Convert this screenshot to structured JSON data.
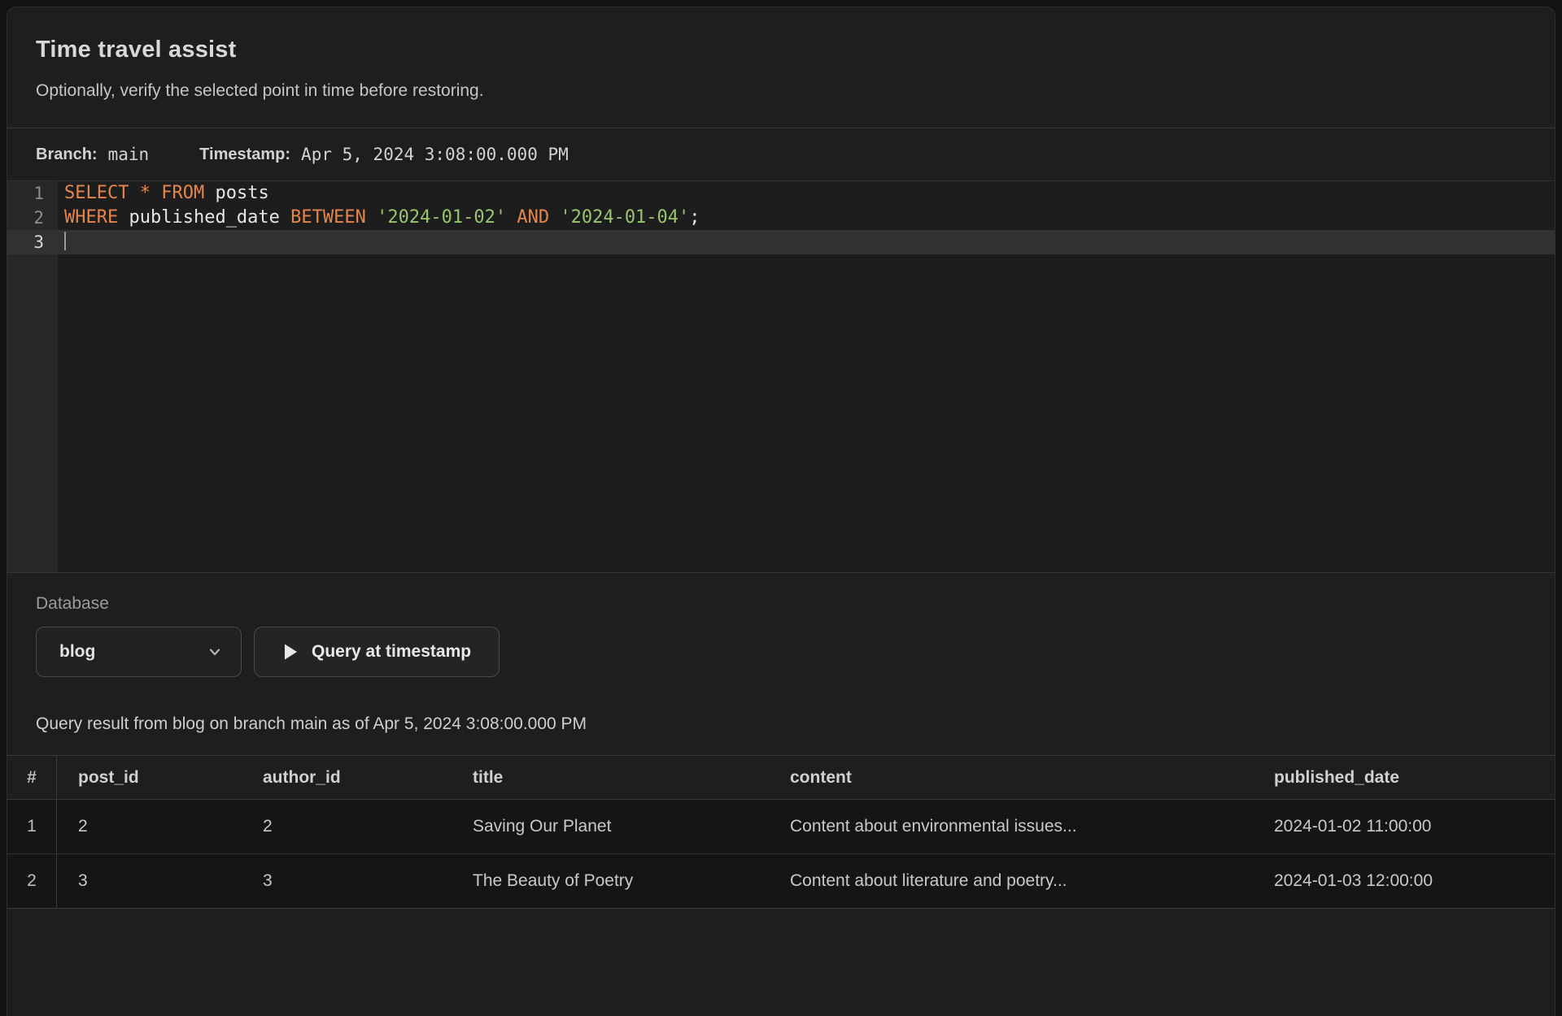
{
  "header": {
    "title": "Time travel assist",
    "subtitle": "Optionally, verify the selected point in time before restoring."
  },
  "meta": {
    "branch_label": "Branch:",
    "branch_value": "main",
    "timestamp_label": "Timestamp:",
    "timestamp_value": "Apr 5, 2024 3:08:00.000 PM"
  },
  "editor": {
    "lines": [
      {
        "number": "1",
        "active": false,
        "tokens": [
          [
            "SELECT",
            "kw"
          ],
          [
            " ",
            "pl"
          ],
          [
            "*",
            "kw"
          ],
          [
            " ",
            "pl"
          ],
          [
            "FROM",
            "kw"
          ],
          [
            " ",
            "pl"
          ],
          [
            "posts",
            "pl"
          ]
        ]
      },
      {
        "number": "2",
        "active": false,
        "tokens": [
          [
            "WHERE",
            "kw"
          ],
          [
            " ",
            "pl"
          ],
          [
            "published_date",
            "pl"
          ],
          [
            " ",
            "pl"
          ],
          [
            "BETWEEN",
            "kw"
          ],
          [
            " ",
            "pl"
          ],
          [
            "'2024-01-02'",
            "str"
          ],
          [
            " ",
            "pl"
          ],
          [
            "AND",
            "kw"
          ],
          [
            " ",
            "pl"
          ],
          [
            "'2024-01-04'",
            "str"
          ],
          [
            ";",
            "pl"
          ]
        ]
      },
      {
        "number": "3",
        "active": true,
        "cursor": true,
        "tokens": []
      }
    ]
  },
  "database": {
    "label": "Database",
    "selected_value": "blog",
    "run_button_label": "Query at timestamp"
  },
  "result": {
    "summary": "Query result from blog on branch main as of Apr 5, 2024 3:08:00.000 PM"
  },
  "table": {
    "columns": [
      "#",
      "post_id",
      "author_id",
      "title",
      "content",
      "published_date"
    ],
    "rows": [
      [
        "1",
        "2",
        "2",
        "Saving Our Planet",
        "Content about environmental issues...",
        "2024-01-02 11:00:00"
      ],
      [
        "2",
        "3",
        "3",
        "The Beauty of Poetry",
        "Content about literature and poetry...",
        "2024-01-03 12:00:00"
      ]
    ]
  },
  "icons": {
    "dropdown": "chevron-down-icon",
    "run": "play-icon"
  },
  "colors": {
    "keyword": "#e6854c",
    "string": "#9ac46d",
    "code_plain": "#e6e6e6",
    "panel_bg": "#1e1e1e",
    "editor_gutter": "#282828",
    "active_line": "#313131",
    "row_bg": "#151515",
    "border": "#3a3a3a"
  }
}
